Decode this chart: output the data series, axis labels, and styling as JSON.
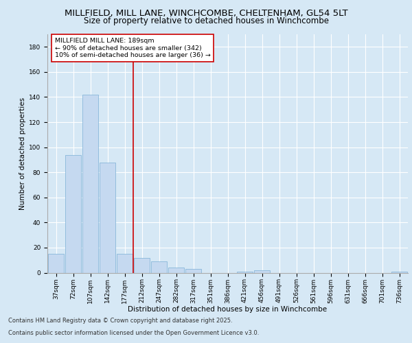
{
  "title_line1": "MILLFIELD, MILL LANE, WINCHCOMBE, CHELTENHAM, GL54 5LT",
  "title_line2": "Size of property relative to detached houses in Winchcombe",
  "xlabel": "Distribution of detached houses by size in Winchcombe",
  "ylabel": "Number of detached properties",
  "categories": [
    "37sqm",
    "72sqm",
    "107sqm",
    "142sqm",
    "177sqm",
    "212sqm",
    "247sqm",
    "282sqm",
    "317sqm",
    "351sqm",
    "386sqm",
    "421sqm",
    "456sqm",
    "491sqm",
    "526sqm",
    "561sqm",
    "596sqm",
    "631sqm",
    "666sqm",
    "701sqm",
    "736sqm"
  ],
  "values": [
    15,
    94,
    142,
    88,
    15,
    12,
    9,
    4,
    3,
    0,
    0,
    1,
    2,
    0,
    0,
    0,
    0,
    0,
    0,
    0,
    1
  ],
  "bar_color": "#c5d9f0",
  "bar_edge_color": "#7bafd4",
  "vline_x": 4.5,
  "vline_color": "#cc0000",
  "annotation_text": "MILLFIELD MILL LANE: 189sqm\n← 90% of detached houses are smaller (342)\n10% of semi-detached houses are larger (36) →",
  "annotation_box_color": "#ffffff",
  "annotation_box_edge": "#cc0000",
  "bg_color": "#d6e8f5",
  "plot_bg_color": "#d6e8f5",
  "footer_line1": "Contains HM Land Registry data © Crown copyright and database right 2025.",
  "footer_line2": "Contains public sector information licensed under the Open Government Licence v3.0.",
  "ylim": [
    0,
    190
  ],
  "yticks": [
    0,
    20,
    40,
    60,
    80,
    100,
    120,
    140,
    160,
    180
  ],
  "title_fontsize": 9.5,
  "subtitle_fontsize": 8.5,
  "axis_label_fontsize": 7.5,
  "tick_fontsize": 6.5,
  "annotation_fontsize": 6.8,
  "footer_fontsize": 6.0
}
